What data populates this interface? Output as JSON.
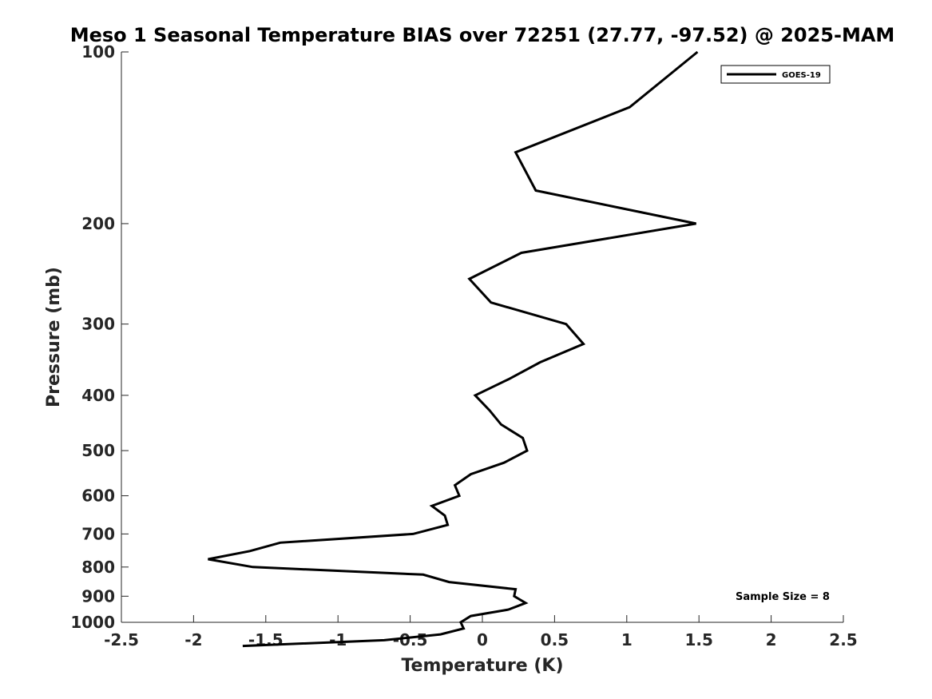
{
  "chart_data": {
    "type": "line",
    "title": "Meso 1 Seasonal Temperature BIAS over 72251 (27.77, -97.52) @ 2025-MAM",
    "xlabel": "Temperature (K)",
    "ylabel": "Pressure (mb)",
    "xlim": [
      -2.5,
      2.5
    ],
    "ylim": [
      100,
      1000
    ],
    "y_scale": "log",
    "y_reversed": true,
    "x_ticks": [
      -2.5,
      -2,
      -1.5,
      -1,
      -0.5,
      0,
      0.5,
      1,
      1.5,
      2,
      2.5
    ],
    "x_tick_labels": [
      "-2.5",
      "-2",
      "-1.5",
      "-1",
      "-0.5",
      "0",
      "0.5",
      "1",
      "1.5",
      "2",
      "2.5"
    ],
    "y_ticks": [
      100,
      200,
      300,
      400,
      500,
      600,
      700,
      800,
      900,
      1000
    ],
    "y_tick_labels": [
      "100",
      "200",
      "300",
      "400",
      "500",
      "600",
      "700",
      "800",
      "900",
      "1000"
    ],
    "grid": false,
    "legend_position": "top-right",
    "annotation": "Sample Size = 8",
    "series": [
      {
        "name": "GOES-19",
        "color": "#000000",
        "points": [
          [
            1.49,
            100
          ],
          [
            1.02,
            125
          ],
          [
            0.23,
            150
          ],
          [
            0.37,
            175
          ],
          [
            1.48,
            200
          ],
          [
            0.27,
            225
          ],
          [
            -0.09,
            250
          ],
          [
            0.06,
            275
          ],
          [
            0.58,
            300
          ],
          [
            0.7,
            325
          ],
          [
            0.4,
            350
          ],
          [
            0.18,
            375
          ],
          [
            -0.05,
            400
          ],
          [
            0.05,
            425
          ],
          [
            0.13,
            450
          ],
          [
            0.28,
            475
          ],
          [
            0.31,
            500
          ],
          [
            0.15,
            525
          ],
          [
            -0.08,
            550
          ],
          [
            -0.19,
            575
          ],
          [
            -0.16,
            600
          ],
          [
            -0.35,
            625
          ],
          [
            -0.26,
            650
          ],
          [
            -0.24,
            675
          ],
          [
            -0.48,
            700
          ],
          [
            -1.4,
            725
          ],
          [
            -1.61,
            750
          ],
          [
            -1.9,
            775
          ],
          [
            -1.59,
            800
          ],
          [
            -0.41,
            825
          ],
          [
            -0.23,
            850
          ],
          [
            0.23,
            875
          ],
          [
            0.22,
            900
          ],
          [
            0.3,
            925
          ],
          [
            0.18,
            950
          ],
          [
            -0.08,
            975
          ],
          [
            -0.15,
            1000
          ],
          [
            -0.13,
            1025
          ],
          [
            -0.29,
            1050
          ],
          [
            -0.68,
            1075
          ],
          [
            -1.66,
            1100
          ]
        ]
      }
    ]
  }
}
